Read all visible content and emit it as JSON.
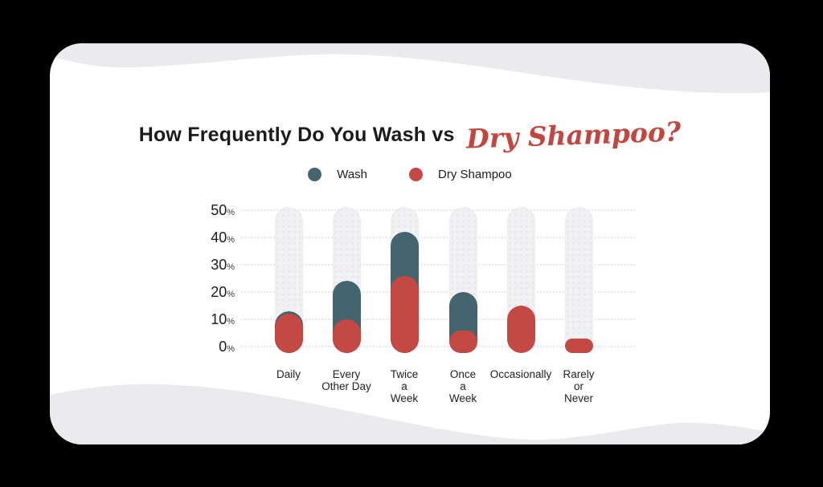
{
  "page": {
    "background_color": "#000000",
    "card_background": "#ffffff",
    "wave_color": "#ebebed"
  },
  "title": {
    "main": "How Frequently Do You Wash vs",
    "accent": "Dry Shampoo?",
    "main_color": "#1b1b1b",
    "accent_color": "#c2453f"
  },
  "legend": {
    "items": [
      {
        "label": "Wash",
        "color": "#45656e"
      },
      {
        "label": "Dry Shampoo",
        "color": "#c44843"
      }
    ]
  },
  "chart_data": {
    "type": "bar",
    "title": "How Frequently Do You Wash vs Dry Shampoo?",
    "categories": [
      "Daily",
      "Every Other Day",
      "Twice a Week",
      "Once a Week",
      "Occasionally",
      "Rarely or Never"
    ],
    "category_labels_multiline": [
      "Daily",
      "Every\nOther Day",
      "Twice\na\nWeek",
      "Once\na\nWeek",
      "Occasionally",
      "Rarely\nor\nNever"
    ],
    "series": [
      {
        "name": "Wash",
        "color": "#45656e",
        "values": [
          13,
          24,
          42,
          20,
          null,
          null
        ]
      },
      {
        "name": "Dry Shampoo",
        "color": "#c44843",
        "values": [
          12,
          10,
          26,
          6,
          15,
          3
        ]
      }
    ],
    "unit": "%",
    "y_ticks": [
      50,
      40,
      30,
      20,
      10,
      0
    ],
    "ylim": [
      0,
      50
    ],
    "track_max_pct": 52,
    "track_color": "#f1f0f2",
    "grid": "dotted horizontal",
    "legend_position": "top",
    "bar_style": "rounded pill, overlapping series (Wash behind, Dry Shampoo in front)"
  }
}
